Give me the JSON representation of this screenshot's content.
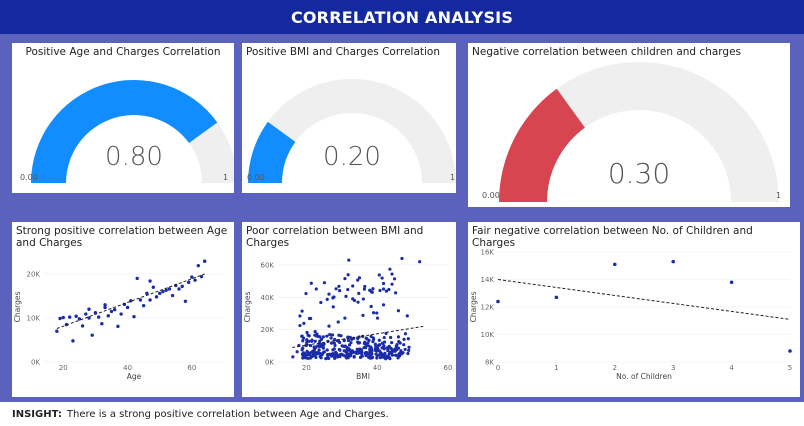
{
  "header": {
    "title": "CORRELATION ANALYSIS"
  },
  "colors": {
    "header_bg": "#1428a0",
    "canvas_bg": "#5b62bd",
    "gauge_blue": "#118dff",
    "gauge_red": "#d64550",
    "gauge_track": "#f0efef",
    "scatter_dot": "#1a2ca7"
  },
  "gauges": [
    {
      "title": "Positive Age and Charges Correlation",
      "value": 0.8,
      "value_label": "0.80",
      "min_label": "0.00",
      "max_label": "1",
      "color": "#118dff"
    },
    {
      "title": "Positive BMI and Charges Correlation",
      "value": 0.2,
      "value_label": "0.20",
      "min_label": "0.00",
      "max_label": "1",
      "color": "#118dff"
    },
    {
      "title": "Negative correlation between children and charges",
      "value": 0.3,
      "value_label": "0.30",
      "min_label": "0.00",
      "max_label": "1",
      "color": "#d64550"
    }
  ],
  "chart_data": [
    {
      "type": "scatter",
      "title": "Strong positive correlation between Age and Charges",
      "xlabel": "Age",
      "ylabel": "Charges",
      "xlim": [
        14,
        70
      ],
      "ylim": [
        0,
        25000
      ],
      "xticks": [
        20,
        40,
        60
      ],
      "xtick_labels": [
        "20",
        "40",
        "60"
      ],
      "yticks": [
        0,
        10000,
        20000
      ],
      "ytick_labels": [
        "0K",
        "10K",
        "20K"
      ],
      "trendline": [
        [
          18,
          7600
        ],
        [
          64,
          20000
        ]
      ],
      "points": [
        [
          18,
          7000
        ],
        [
          19,
          9900
        ],
        [
          20,
          10100
        ],
        [
          21,
          8500
        ],
        [
          22,
          10200
        ],
        [
          23,
          4800
        ],
        [
          24,
          10400
        ],
        [
          25,
          9800
        ],
        [
          26,
          8200
        ],
        [
          27,
          10900
        ],
        [
          28,
          10000
        ],
        [
          29,
          6100
        ],
        [
          30,
          11200
        ],
        [
          31,
          10200
        ],
        [
          32,
          8700
        ],
        [
          33,
          12400
        ],
        [
          34,
          10500
        ],
        [
          35,
          11500
        ],
        [
          36,
          11900
        ],
        [
          37,
          8100
        ],
        [
          38,
          10900
        ],
        [
          39,
          13100
        ],
        [
          40,
          12400
        ],
        [
          41,
          13900
        ],
        [
          42,
          10300
        ],
        [
          43,
          19000
        ],
        [
          44,
          14100
        ],
        [
          45,
          12800
        ],
        [
          46,
          15600
        ],
        [
          47,
          14100
        ],
        [
          48,
          17000
        ],
        [
          49,
          14800
        ],
        [
          50,
          15600
        ],
        [
          51,
          16000
        ],
        [
          52,
          16300
        ],
        [
          53,
          16600
        ],
        [
          54,
          15100
        ],
        [
          55,
          17400
        ],
        [
          56,
          16600
        ],
        [
          57,
          17200
        ],
        [
          58,
          13800
        ],
        [
          59,
          18100
        ],
        [
          60,
          19300
        ],
        [
          61,
          18600
        ],
        [
          62,
          21900
        ],
        [
          63,
          19400
        ],
        [
          64,
          22900
        ],
        [
          47,
          18400
        ],
        [
          33,
          13000
        ],
        [
          28,
          12000
        ]
      ]
    },
    {
      "type": "scatter",
      "title": "Poor correlation between BMI and Charges",
      "xlabel": "BMI",
      "ylabel": "Charges",
      "xlim": [
        12,
        60
      ],
      "ylim": [
        0,
        68000
      ],
      "xticks": [
        20,
        40,
        60
      ],
      "xtick_labels": [
        "20",
        "40",
        "60"
      ],
      "yticks": [
        0,
        20000,
        40000,
        60000
      ],
      "ytick_labels": [
        "0K",
        "20K",
        "40K",
        "60K"
      ],
      "trendline": [
        [
          16,
          9000
        ],
        [
          53,
          22000
        ]
      ],
      "points": []
    },
    {
      "type": "scatter",
      "title": "Fair negative correlation between No. of Children and Charges",
      "xlabel": "No. of Children",
      "ylabel": "Charges",
      "xlim": [
        0,
        5
      ],
      "ylim": [
        8000,
        16000
      ],
      "xticks": [
        0,
        1,
        2,
        3,
        4,
        5
      ],
      "xtick_labels": [
        "0",
        "1",
        "2",
        "3",
        "4",
        "5"
      ],
      "yticks": [
        8000,
        10000,
        12000,
        14000,
        16000
      ],
      "ytick_labels": [
        "8K",
        "10K",
        "12K",
        "14K",
        "16K"
      ],
      "trendline": [
        [
          0,
          14000
        ],
        [
          5,
          11100
        ]
      ],
      "points": [
        [
          0,
          12400
        ],
        [
          1,
          12700
        ],
        [
          2,
          15100
        ],
        [
          3,
          15300
        ],
        [
          4,
          13800
        ],
        [
          5,
          8800
        ]
      ]
    }
  ],
  "insight": {
    "label": "INSIGHT:",
    "text": "There is a strong positive correlation between Age and Charges."
  }
}
